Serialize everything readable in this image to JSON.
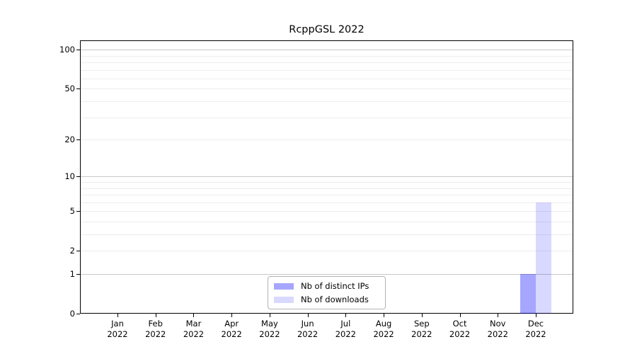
{
  "title": "RcppGSL 2022",
  "colors": {
    "axis": "#000000",
    "grid_major": "#c8c8c8",
    "grid_minor": "#ededed",
    "legend_border": "#b3b3b3",
    "distinct_ips_bar": "#a6a6ff",
    "downloads_bar": "#d9d9ff"
  },
  "legend": {
    "items": [
      {
        "label": "Nb of distinct IPs",
        "fill": "rgba(0,0,255,0.35)"
      },
      {
        "label": "Nb of downloads",
        "fill": "rgba(0,0,255,0.15)"
      }
    ]
  },
  "chart_data": {
    "type": "bar",
    "title": "RcppGSL 2022",
    "xlabel": "",
    "ylabel": "",
    "categories": [
      "Jan 2022",
      "Feb 2022",
      "Mar 2022",
      "Apr 2022",
      "May 2022",
      "Jun 2022",
      "Jul 2022",
      "Aug 2022",
      "Sep 2022",
      "Oct 2022",
      "Nov 2022",
      "Dec 2022"
    ],
    "series": [
      {
        "name": "Nb of distinct IPs",
        "fill": "rgba(0,0,255,0.35)",
        "values": [
          0,
          0,
          0,
          0,
          0,
          0,
          0,
          0,
          0,
          0,
          0,
          1
        ]
      },
      {
        "name": "Nb of downloads",
        "fill": "rgba(0,0,255,0.15)",
        "values": [
          0,
          0,
          0,
          0,
          0,
          0,
          0,
          0,
          0,
          0,
          0,
          6
        ]
      }
    ],
    "yscale": "log1p",
    "ylim": [
      0,
      118
    ],
    "ytick_values": [
      0,
      1,
      2,
      5,
      10,
      20,
      50,
      100
    ],
    "y_major_gridlines": [
      1,
      10,
      100
    ],
    "y_minor_gridlines": [
      2,
      3,
      4,
      5,
      6,
      7,
      8,
      9,
      20,
      30,
      40,
      50,
      60,
      70,
      80,
      90
    ],
    "grid": true,
    "legend_position": "lower center inside"
  }
}
